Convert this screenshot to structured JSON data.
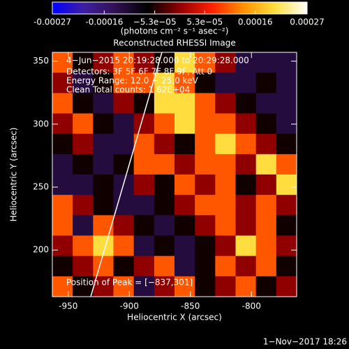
{
  "chart_data": {
    "type": "heatmap",
    "title": "Reconstructed RHESSI Image",
    "xlabel": "Heliocentric X (arcsec)",
    "ylabel": "Heliocentric Y (arcsec)",
    "xlim": [
      -963,
      -763
    ],
    "ylim": [
      163,
      357
    ],
    "xticks": [
      -950,
      -900,
      -850,
      -800
    ],
    "yticks": [
      200,
      250,
      300,
      350
    ],
    "colorbar": {
      "lim": [
        -0.00027,
        0.00027
      ],
      "ticks": [
        -0.00027,
        -0.00016,
        {
          "value": -5.3e-05,
          "label": "−5.3e−05"
        },
        {
          "value": 5.3e-05,
          "label": "5.3e−05"
        },
        0.00016,
        0.00027
      ],
      "units": "(photons cm⁻² s⁻¹ asec⁻²)",
      "colors": [
        "#0000ff",
        "#4020a0",
        "#301050",
        "#000000",
        "#900000",
        "#ff2000",
        "#ff9000",
        "#ffe040",
        "#ffffff"
      ]
    },
    "annotations": [
      "4−Jun−2015 20:19:28.000 to 20:29:28.000",
      "Detectors: 3F 5F 6F 7F 8F 9F, Att 0",
      "Energy Range: 12.0 − 25.0 keV",
      "Clean    Total counts: 1.62E+04"
    ],
    "peak_label": "Position of Peak = [−837,301]",
    "timestamp": "1−Nov−2017 18:26",
    "z": [
      [
        0.0001,
        -6e-05,
        0,
        0.0001,
        0,
        -6e-05,
        0.0002,
        0.0001,
        0,
        -0.00012,
        -0.00012,
        -0.00012
      ],
      [
        0,
        -0.00012,
        -6e-05,
        0.0001,
        0.0001,
        0.0002,
        0.0001,
        -6e-05,
        -0.00012,
        -0.00012,
        -6e-05,
        -0.00012
      ],
      [
        0.0001,
        -6e-05,
        -0.00012,
        0,
        -6e-05,
        0.0002,
        0.0002,
        0.0001,
        0,
        -6e-05,
        -0.00012,
        -0.00012
      ],
      [
        0,
        0.0001,
        -6e-05,
        -0.00012,
        0,
        0.0001,
        0.0002,
        0.0001,
        0.0001,
        0,
        -6e-05,
        -0.00012
      ],
      [
        -6e-05,
        0,
        -0.00012,
        -0.00012,
        0.0001,
        0,
        -6e-05,
        0.0001,
        0.0002,
        0.0001,
        0,
        -6e-05
      ],
      [
        -0.00012,
        -6e-05,
        -0.00012,
        -6e-05,
        0.0001,
        0.0001,
        0,
        0.0001,
        0.0001,
        0,
        0.0002,
        0.0001
      ],
      [
        -0.00012,
        -0.00012,
        -6e-05,
        -0.00012,
        0,
        -6e-05,
        0.0001,
        0,
        0.0001,
        -6e-05,
        0,
        0.0002
      ],
      [
        0.0001,
        0,
        -6e-05,
        -0.00012,
        -0.00012,
        -6e-05,
        0,
        0.0001,
        0.0001,
        0,
        0.0001,
        0
      ],
      [
        0.0001,
        -0.00012,
        0.0001,
        0,
        -6e-05,
        -0.00012,
        -6e-05,
        0,
        0.0001,
        0,
        0.0001,
        -6e-05
      ],
      [
        0,
        0.0001,
        0.0002,
        0.0001,
        -0.00012,
        -6e-05,
        -0.00012,
        -6e-05,
        0,
        0.0002,
        0.0001,
        0
      ],
      [
        -6e-05,
        0,
        0.0001,
        -6e-05,
        0,
        0.0001,
        -0.00012,
        -6e-05,
        0.0001,
        0,
        0.0001,
        -6e-05
      ],
      [
        0.0001,
        -6e-05,
        0,
        0.0001,
        -0.00012,
        0,
        0.0001,
        -6e-05,
        0,
        0.0001,
        -6e-05,
        0
      ]
    ]
  }
}
